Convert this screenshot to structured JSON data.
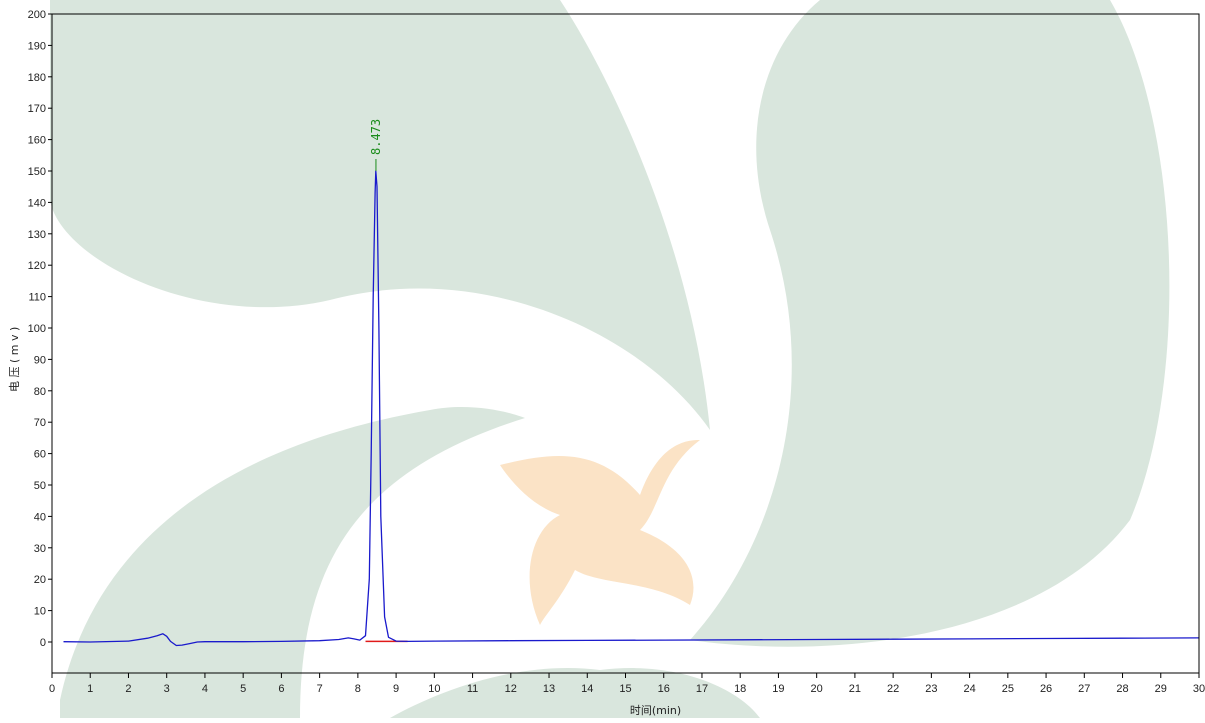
{
  "chart_data": {
    "type": "line",
    "xlabel": "时间(min)",
    "ylabel": "电 压 ( m v )",
    "xlim": [
      0,
      30
    ],
    "ylim": [
      -10,
      200
    ],
    "x_ticks": [
      "0",
      "1",
      "2",
      "3",
      "4",
      "5",
      "6",
      "7",
      "8",
      "9",
      "10",
      "11",
      "12",
      "13",
      "14",
      "15",
      "16",
      "17",
      "18",
      "19",
      "20",
      "21",
      "22",
      "23",
      "24",
      "25",
      "26",
      "27",
      "28",
      "29",
      "30"
    ],
    "y_ticks": [
      "0",
      "10",
      "20",
      "30",
      "40",
      "50",
      "60",
      "70",
      "80",
      "90",
      "100",
      "110",
      "120",
      "130",
      "140",
      "150",
      "160",
      "170",
      "180",
      "190",
      "200"
    ],
    "grid": false,
    "series": [
      {
        "color": "#1a1acc",
        "x": [
          0.3,
          1.0,
          2.0,
          2.5,
          2.75,
          2.9,
          3.0,
          3.1,
          3.25,
          3.4,
          3.6,
          3.8,
          4.0,
          5.0,
          6.0,
          7.0,
          7.5,
          7.75,
          7.9,
          8.05,
          8.2,
          8.3,
          8.35,
          8.4,
          8.45,
          8.47,
          8.5,
          8.55,
          8.6,
          8.7,
          8.8,
          9.0,
          9.3,
          10.0,
          12.0,
          14.0,
          16.0,
          18.0,
          20.0,
          22.0,
          24.0,
          26.0,
          28.0,
          30.0
        ],
        "y": [
          0.1,
          0.0,
          0.3,
          1.2,
          2.0,
          2.6,
          1.8,
          0.2,
          -1.1,
          -1.0,
          -0.5,
          0.0,
          0.1,
          0.1,
          0.2,
          0.4,
          0.8,
          1.3,
          1.0,
          0.6,
          2.0,
          20.0,
          60.0,
          110.0,
          143.0,
          150.0,
          145.0,
          100.0,
          40.0,
          8.0,
          1.5,
          0.3,
          0.2,
          0.3,
          0.4,
          0.5,
          0.6,
          0.7,
          0.8,
          0.9,
          1.0,
          1.1,
          1.2,
          1.3
        ]
      }
    ],
    "peak_baseline": {
      "color": "#e01a1a",
      "x": [
        8.2,
        9.3
      ],
      "y": [
        0.2,
        0.2
      ]
    },
    "annotations": [
      {
        "text": "8.473",
        "x": 8.473,
        "y": 150,
        "color": "#1a8c1a"
      }
    ]
  }
}
